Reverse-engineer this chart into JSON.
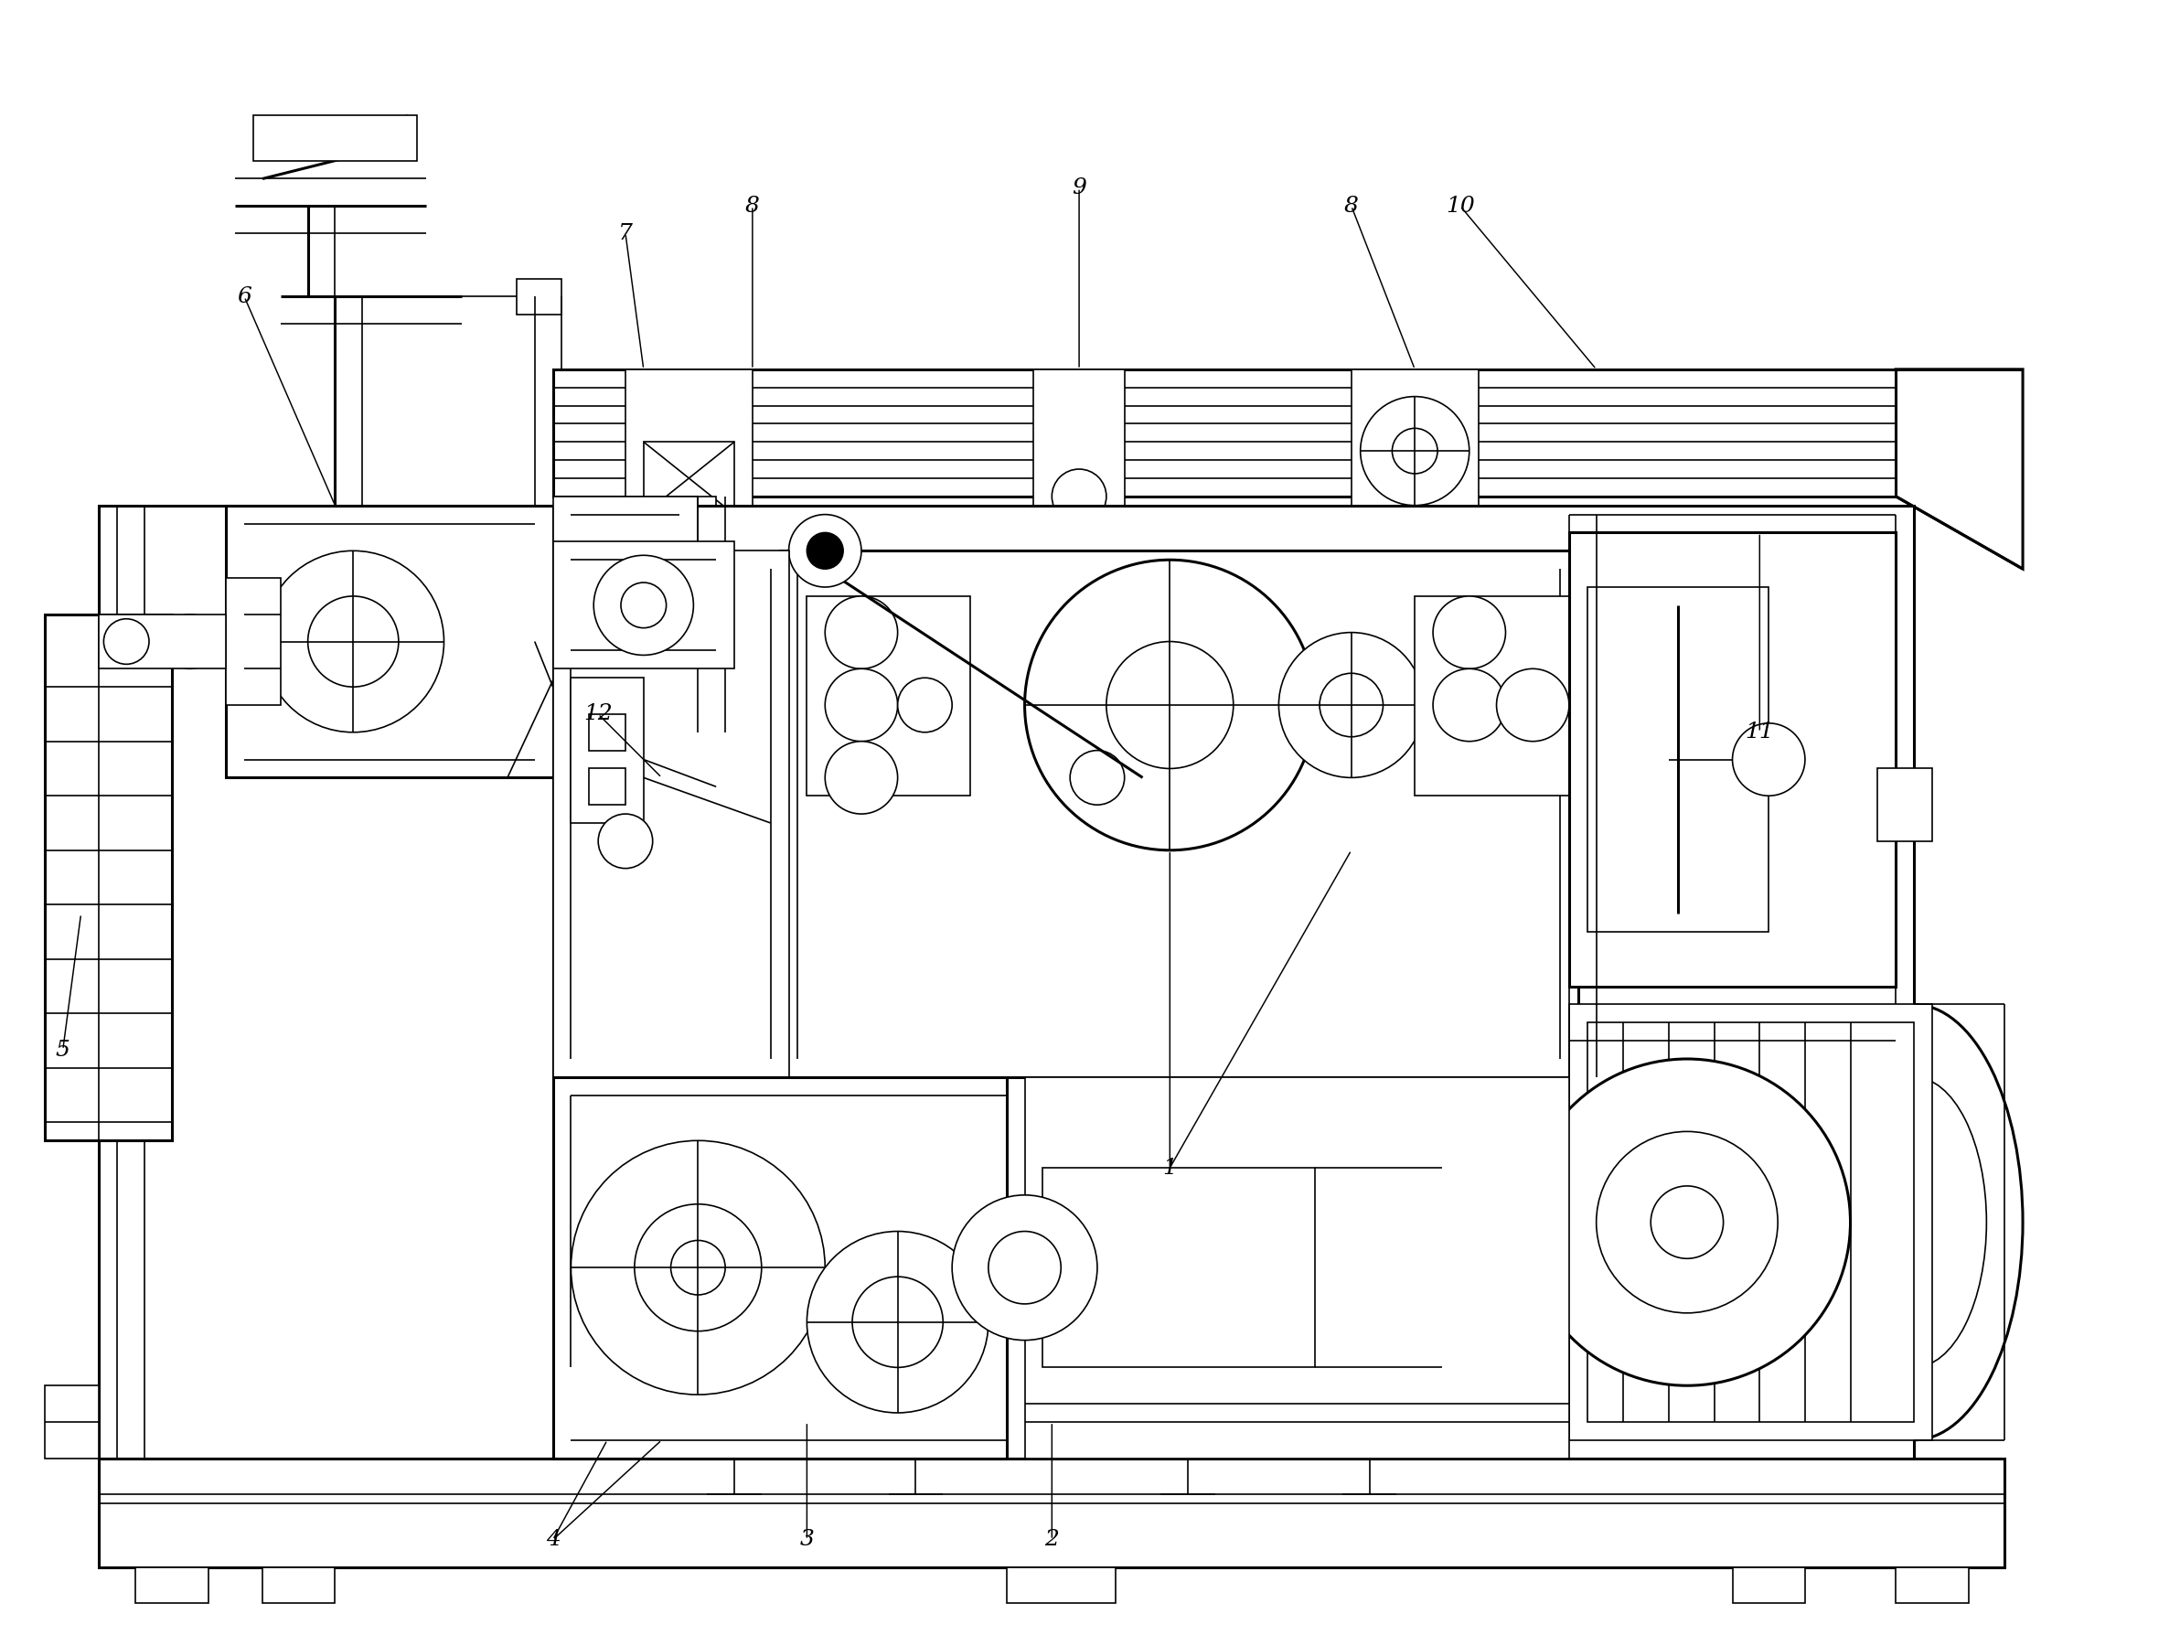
{
  "bg_color": "#ffffff",
  "lc": "#000000",
  "lw": 1.2,
  "tlw": 2.2,
  "fig_width": 23.84,
  "fig_height": 18.0,
  "label_fontsize": 18
}
